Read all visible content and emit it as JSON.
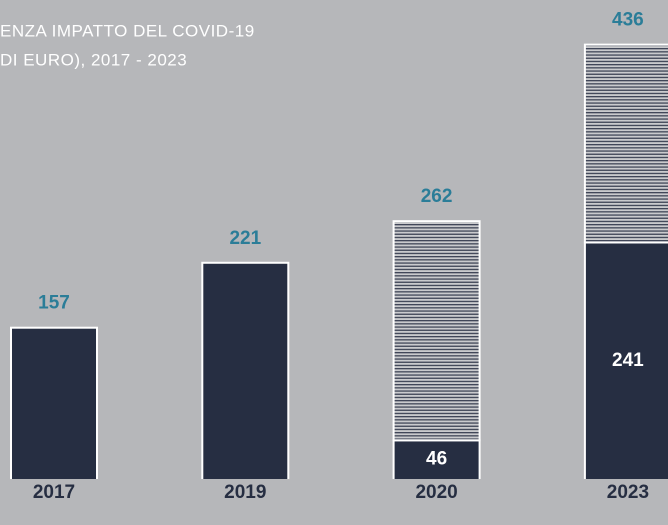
{
  "chart_data": {
    "type": "stacked-bar",
    "title": [
      "ENZA IMPATTO DEL COVID-19",
      "DI EURO), 2017 - 2023"
    ],
    "categories": [
      "2017",
      "2019",
      "2020",
      "2023"
    ],
    "series": [
      {
        "color": "#262e42",
        "values": [
          157,
          221,
          46,
          241
        ],
        "value_labels": [
          null,
          null,
          "46",
          "241"
        ]
      },
      {
        "color": "hatched",
        "values": [
          null,
          null,
          216,
          195
        ]
      }
    ],
    "totals": [
      157,
      221,
      262,
      436
    ],
    "ylim": [
      0,
      480
    ]
  }
}
